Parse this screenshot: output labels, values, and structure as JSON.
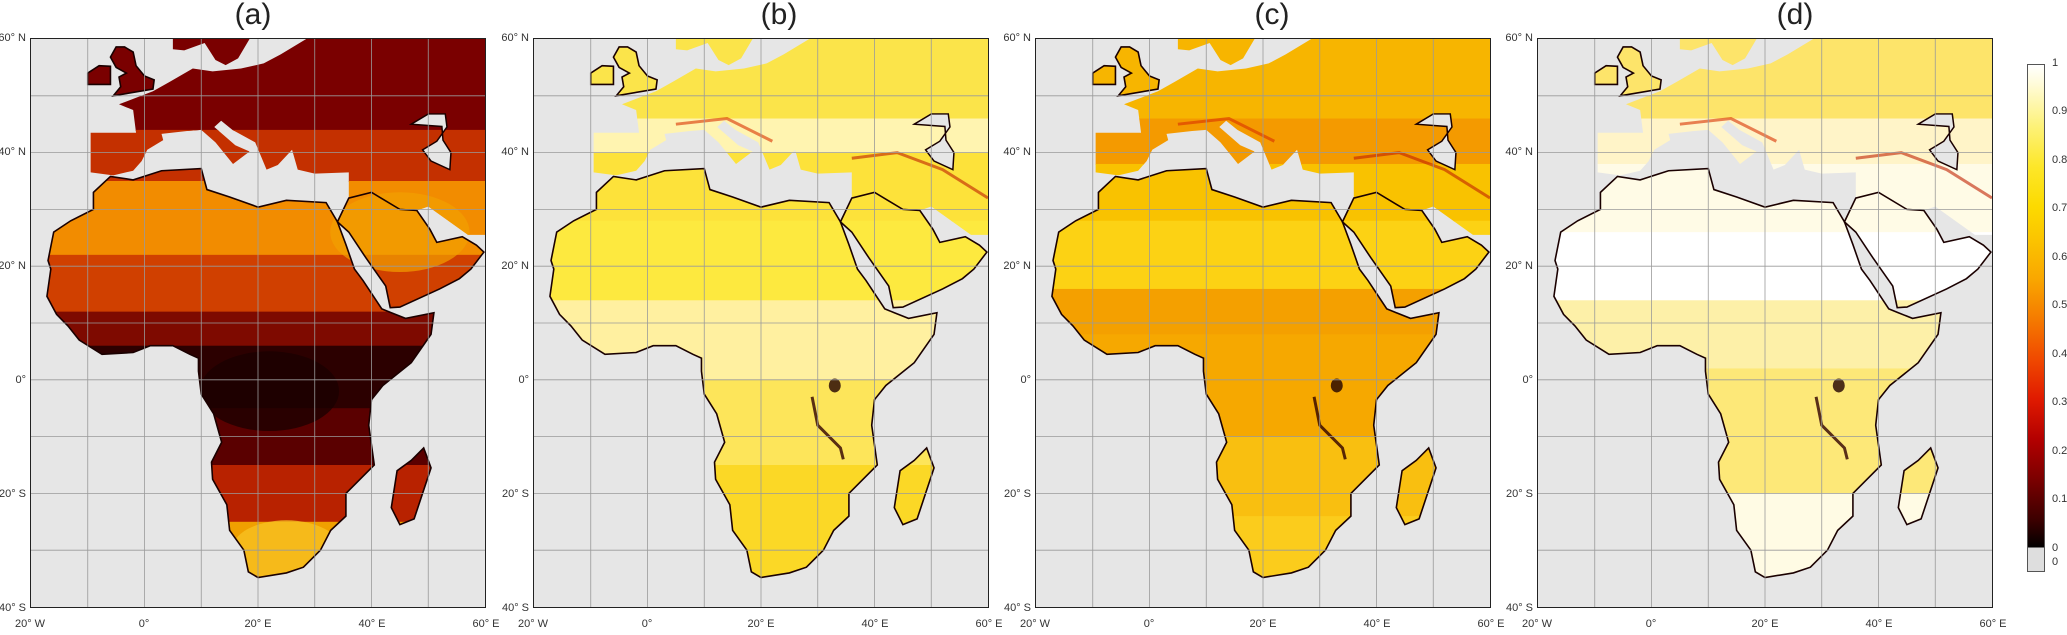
{
  "panels": [
    {
      "title": "(a)",
      "scheme": "dark"
    },
    {
      "title": "(b)",
      "scheme": "light"
    },
    {
      "title": "(c)",
      "scheme": "mid"
    },
    {
      "title": "(d)",
      "scheme": "pale"
    }
  ],
  "lat_labels": [
    "60° N",
    "40° N",
    "20° N",
    "0°",
    "20° S",
    "40° S"
  ],
  "lon_labels": [
    "20° W",
    "0°",
    "20° E",
    "40° E",
    "60° E"
  ],
  "colorbar": {
    "ticks": [
      "1",
      "0.9",
      "0.8",
      "0.7",
      "0.6",
      "0.5",
      "0.4",
      "0.3",
      "0.2",
      "0.1",
      "0",
      "0"
    ],
    "min": 0,
    "max": 1
  },
  "colors": {
    "background": "#e6e6e6",
    "grid": "#9a9a9a",
    "coast": "#1a0000"
  }
}
